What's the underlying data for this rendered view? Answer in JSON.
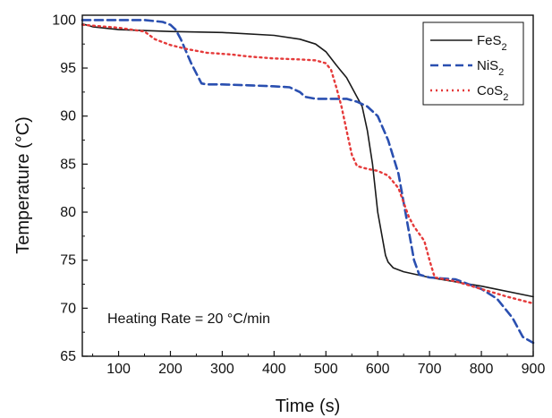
{
  "chart_data": {
    "type": "line",
    "title": "",
    "xlabel": "Time (s)",
    "ylabel": "Temperature (°C)",
    "xlim": [
      30,
      900
    ],
    "ylim": [
      65,
      100.5
    ],
    "xticks": [
      100,
      200,
      300,
      400,
      500,
      600,
      700,
      800,
      900
    ],
    "yticks": [
      65,
      70,
      75,
      80,
      85,
      90,
      95,
      100
    ],
    "grid": false,
    "legend_position": "top-right",
    "annotation": "Heating Rate = 20 °C/min",
    "series": [
      {
        "name": "FeS2",
        "color": "#1a1a1a",
        "dash": "solid",
        "x": [
          30,
          50,
          100,
          200,
          300,
          400,
          450,
          480,
          500,
          520,
          540,
          560,
          570,
          580,
          590,
          600,
          610,
          615,
          620,
          630,
          650,
          700,
          800,
          900
        ],
        "y": [
          99.6,
          99.3,
          99.0,
          98.8,
          98.7,
          98.4,
          98.0,
          97.5,
          96.7,
          95.3,
          94.0,
          92.0,
          91.0,
          88.5,
          85.0,
          80.0,
          77.0,
          75.5,
          74.8,
          74.2,
          73.8,
          73.2,
          72.3,
          71.2
        ]
      },
      {
        "name": "NiS2",
        "color": "#2a4fb0",
        "dash": "dashed",
        "x": [
          30,
          100,
          150,
          185,
          200,
          210,
          220,
          240,
          260,
          270,
          300,
          350,
          400,
          430,
          450,
          460,
          480,
          500,
          540,
          560,
          580,
          600,
          620,
          640,
          650,
          660,
          670,
          680,
          700,
          750,
          800,
          830,
          860,
          880,
          900
        ],
        "y": [
          100.0,
          100.0,
          100.0,
          99.8,
          99.5,
          99.0,
          98.0,
          95.5,
          93.4,
          93.3,
          93.3,
          93.2,
          93.1,
          93.0,
          92.5,
          92.0,
          91.8,
          91.8,
          91.8,
          91.5,
          91.0,
          90.0,
          87.5,
          84.0,
          81.0,
          78.0,
          75.0,
          73.5,
          73.2,
          73.0,
          72.0,
          71.0,
          69.0,
          67.0,
          66.4
        ]
      },
      {
        "name": "CoS2",
        "color": "#e53a3a",
        "dash": "dotted",
        "x": [
          30,
          100,
          150,
          170,
          200,
          230,
          270,
          320,
          350,
          400,
          450,
          480,
          500,
          510,
          520,
          530,
          540,
          550,
          560,
          580,
          600,
          620,
          640,
          650,
          660,
          670,
          690,
          700,
          710,
          750,
          800,
          850,
          900
        ],
        "y": [
          99.5,
          99.2,
          98.8,
          98.0,
          97.4,
          97.0,
          96.6,
          96.4,
          96.2,
          96.0,
          95.9,
          95.8,
          95.5,
          94.8,
          93.0,
          91.0,
          88.5,
          86.0,
          84.8,
          84.5,
          84.3,
          83.8,
          82.5,
          81.0,
          79.5,
          78.5,
          77.0,
          75.0,
          73.2,
          72.8,
          72.0,
          71.2,
          70.5
        ]
      }
    ]
  }
}
